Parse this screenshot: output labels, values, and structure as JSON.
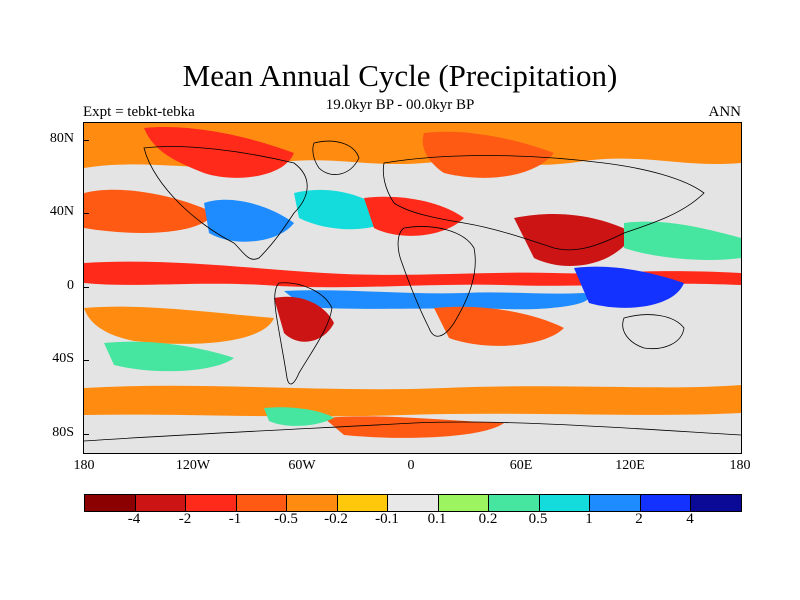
{
  "title": "Mean Annual Cycle (Precipitation)",
  "subtitle": "19.0kyr BP - 00.0kyr BP",
  "left_label": "Expt = tebkt-tebka",
  "right_label": "ANN",
  "lat_labels": [
    "80N",
    "40N",
    "0",
    "40S",
    "80S"
  ],
  "lon_labels": [
    "180",
    "120W",
    "60W",
    "0",
    "60E",
    "120E",
    "180"
  ],
  "colorbar": {
    "colors": [
      "#8b0000",
      "#cc1414",
      "#ff2a1a",
      "#ff5a14",
      "#ff8c10",
      "#ffc80a",
      "#e8e8e8",
      "#9cf560",
      "#46e6a0",
      "#14dcdc",
      "#1e8cff",
      "#1432ff",
      "#0a0a96"
    ],
    "labels": [
      "-4",
      "-2",
      "-1",
      "-0.5",
      "-0.2",
      "-0.1",
      "0.1",
      "0.2",
      "0.5",
      "1",
      "2",
      "4"
    ]
  }
}
